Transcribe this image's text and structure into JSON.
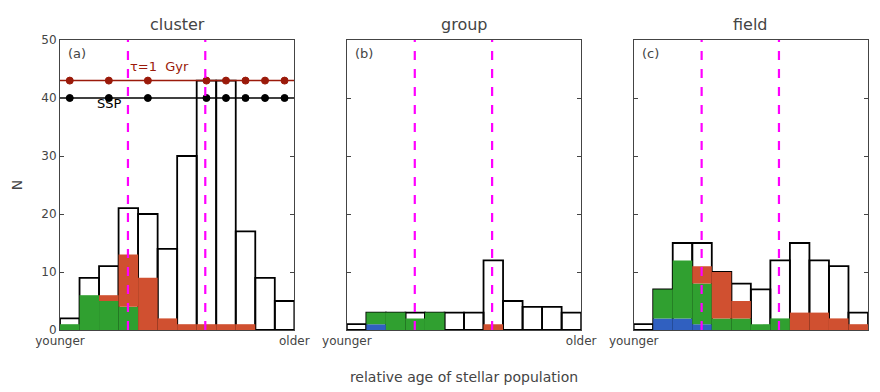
{
  "chart_data": [
    {
      "type": "bar",
      "stacked": true,
      "title": "cluster",
      "ylabel": "N",
      "bins": [
        0,
        1,
        2,
        3,
        4,
        5,
        6,
        7,
        8,
        9,
        10,
        11,
        12
      ],
      "xlim": [
        0,
        12
      ],
      "xticks": [
        {
          "value": 0,
          "label": "younger"
        },
        {
          "value": 12,
          "label": "older"
        }
      ],
      "ylim": [
        0,
        50
      ],
      "yticks": [
        0,
        10,
        20,
        30,
        40,
        50
      ],
      "grid": false,
      "series": [
        {
          "type": "step",
          "color": "#000000",
          "values": [
            2,
            9,
            11,
            21,
            20,
            14,
            30,
            43,
            43,
            17,
            9,
            5
          ]
        },
        {
          "color": "#3060c0",
          "values": [
            0,
            0,
            0,
            0,
            0,
            0,
            0,
            0,
            0,
            0,
            0,
            0
          ]
        },
        {
          "color": "#30a030",
          "values": [
            1,
            6,
            5,
            4,
            0,
            0,
            0,
            0,
            0,
            0,
            0,
            0
          ]
        },
        {
          "color": "#d05030",
          "values": [
            0,
            0,
            1,
            9,
            9,
            2,
            1,
            1,
            1,
            1,
            0,
            0
          ]
        }
      ],
      "vlines": {
        "x": [
          3.48,
          7.44
        ],
        "color": "#ff00ff",
        "line_style": "dashed"
      },
      "hlines": [
        {
          "y": 40,
          "color": "#000000",
          "marker": "circle",
          "x": [
            0.5,
            2.5,
            4.5,
            7.5,
            8.5,
            9.5,
            10.5,
            11.5
          ],
          "values": [
            40,
            40,
            40,
            40,
            40,
            40,
            40,
            40
          ]
        },
        {
          "y": 43,
          "color": "#9b1a0a",
          "marker": "circle",
          "x": [
            0.5,
            2.5,
            4.5,
            7.5,
            8.5,
            9.5,
            10.5,
            11.5
          ],
          "values": [
            43,
            43,
            43,
            43,
            43,
            43,
            43,
            43
          ]
        }
      ],
      "annotations": [
        {
          "text": "(a)",
          "x": 0.3,
          "y": 46
        },
        {
          "text": "SSP",
          "x": 1.8,
          "y": 37.5,
          "color": "#000000"
        },
        {
          "text": "τ=1  Gyr",
          "x": 3.5,
          "y": 43.8,
          "color": "#9b1a0a"
        }
      ]
    },
    {
      "type": "bar",
      "stacked": true,
      "title": "group",
      "xlabel": "relative age of stellar population",
      "bins": [
        0,
        1,
        2,
        3,
        4,
        5,
        6,
        7,
        8,
        9,
        10,
        11,
        12
      ],
      "xlim": [
        0,
        12
      ],
      "xticks": [
        {
          "value": 0,
          "label": "younger"
        },
        {
          "value": 12,
          "label": "older"
        }
      ],
      "ylim": [
        0,
        50
      ],
      "yticks": [
        0,
        10,
        20,
        30,
        40,
        50
      ],
      "grid": false,
      "tick_labels": "x",
      "series": [
        {
          "type": "step",
          "color": "#000000",
          "values": [
            1,
            3,
            3,
            3,
            3,
            3,
            3,
            12,
            5,
            4,
            4,
            3
          ]
        },
        {
          "color": "#3060c0",
          "values": [
            0,
            1,
            0,
            0,
            0,
            0,
            0,
            0,
            0,
            0,
            0,
            0
          ]
        },
        {
          "color": "#30a030",
          "values": [
            0,
            2,
            3,
            2,
            3,
            0,
            0,
            0,
            0,
            0,
            0,
            0
          ]
        },
        {
          "color": "#d05030",
          "values": [
            0,
            0,
            0,
            0,
            0,
            0,
            0,
            1,
            0,
            0,
            0,
            0
          ]
        }
      ],
      "vlines": {
        "x": [
          3.48,
          7.44
        ],
        "color": "#ff00ff",
        "line_style": "dashed"
      },
      "annotations": [
        {
          "text": "(b)",
          "x": 0.3,
          "y": 46
        }
      ]
    },
    {
      "type": "bar",
      "stacked": true,
      "title": "field",
      "bins": [
        0,
        1,
        2,
        3,
        4,
        5,
        6,
        7,
        8,
        9,
        10,
        11,
        12
      ],
      "xlim": [
        0,
        12
      ],
      "xticks": [
        {
          "value": 0,
          "label": "younger"
        },
        {
          "value": 12,
          "label": "older"
        }
      ],
      "ylim": [
        0,
        50
      ],
      "yticks": [
        0,
        10,
        20,
        30,
        40,
        50
      ],
      "grid": false,
      "tick_labels": "x",
      "series": [
        {
          "type": "step",
          "color": "#000000",
          "values": [
            1,
            7,
            15,
            15,
            10,
            8,
            7,
            12,
            15,
            12,
            11,
            3
          ]
        },
        {
          "color": "#3060c0",
          "values": [
            0,
            2,
            2,
            1,
            0,
            0,
            0,
            0,
            0,
            0,
            0,
            0
          ]
        },
        {
          "color": "#30a030",
          "values": [
            0,
            5,
            10,
            7,
            2,
            2,
            1,
            2,
            0,
            0,
            0,
            0
          ]
        },
        {
          "color": "#d05030",
          "values": [
            0,
            0,
            0,
            3,
            8,
            3,
            0,
            0,
            3,
            3,
            2,
            1
          ]
        }
      ],
      "vlines": {
        "x": [
          3.48,
          7.44
        ],
        "color": "#ff00ff",
        "line_style": "dashed"
      },
      "annotations": [
        {
          "text": "(c)",
          "x": 0.3,
          "y": 46
        }
      ]
    }
  ]
}
